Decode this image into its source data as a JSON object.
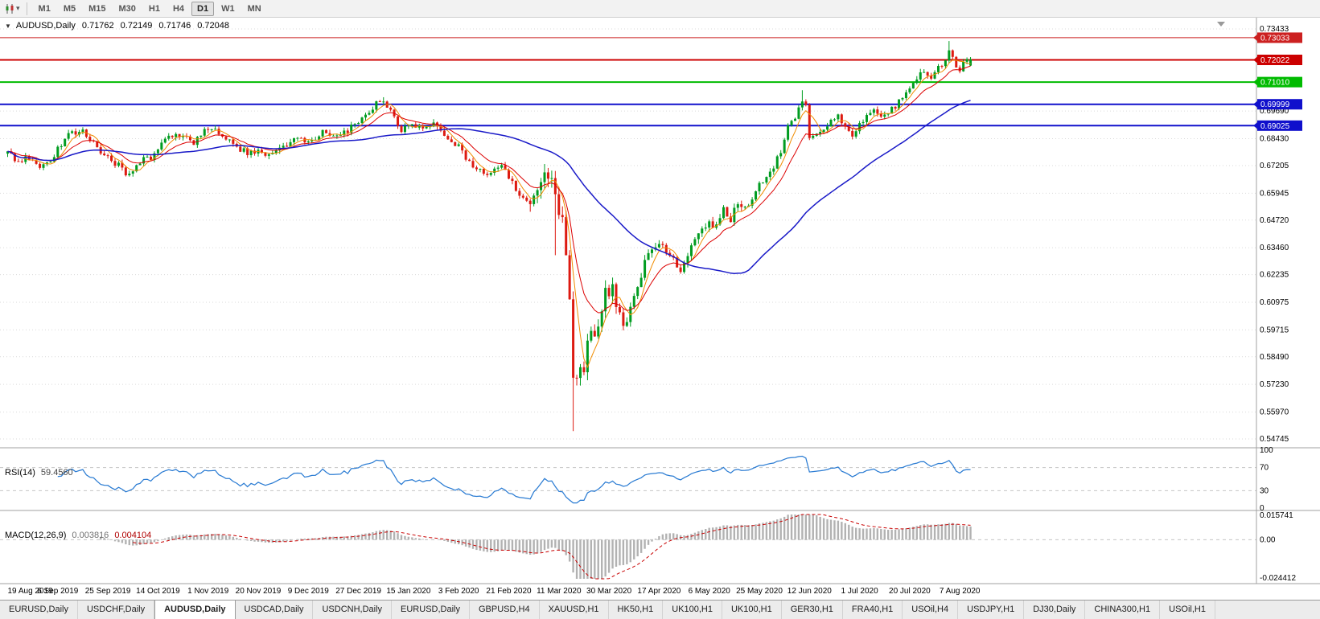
{
  "toolbar": {
    "timeframes": [
      "M1",
      "M5",
      "M15",
      "M30",
      "H1",
      "H4",
      "D1",
      "W1",
      "MN"
    ],
    "active": "D1"
  },
  "chart": {
    "title": {
      "symbol": "AUDUSD,Daily",
      "open": "0.71762",
      "high": "0.72149",
      "low": "0.71746",
      "close": "0.72048"
    },
    "price_axis": {
      "grid_labels": [
        "0.73433",
        "0.69690",
        "0.68430",
        "0.67205",
        "0.65945",
        "0.64720",
        "0.63460",
        "0.62235",
        "0.60975",
        "0.59715",
        "0.58490",
        "0.57230",
        "0.55970",
        "0.54745"
      ]
    },
    "levels": [
      {
        "value": 0.73033,
        "label": "0.73033",
        "color": "#CC2020",
        "width": 1
      },
      {
        "value": 0.72022,
        "label": "0.72022",
        "color": "#CC0000",
        "width": 2
      },
      {
        "value": 0.7101,
        "label": "0.71010",
        "color": "#00BB00",
        "width": 2
      },
      {
        "value": 0.69999,
        "label": "0.69999",
        "color": "#1010CC",
        "width": 2
      },
      {
        "value": 0.69025,
        "label": "0.69025",
        "color": "#1010CC",
        "width": 2
      }
    ]
  },
  "indicator_rsi": {
    "name_label": "RSI(14)",
    "value": "59.4560",
    "axis_labels": [
      "100",
      "70",
      "30",
      "0"
    ],
    "level_lines": [
      70,
      30
    ]
  },
  "indicator_macd": {
    "name_label": "MACD(12,26,9)",
    "value_main": "0.003816",
    "value_signal": "0.004104",
    "axis_top": "0.015741",
    "axis_zero": "0.00",
    "axis_bottom": "-0.024412"
  },
  "date_axis": {
    "bars_per_label": 14,
    "labels": [
      "19 Aug 2019",
      "6 Sep 2019",
      "25 Sep 2019",
      "14 Oct 2019",
      "1 Nov 2019",
      "20 Nov 2019",
      "9 Dec 2019",
      "27 Dec 2019",
      "15 Jan 2020",
      "3 Feb 2020",
      "21 Feb 2020",
      "11 Mar 2020",
      "30 Mar 2020",
      "17 Apr 2020",
      "6 May 2020",
      "25 May 2020",
      "12 Jun 2020",
      "1 Jul 2020",
      "20 Jul 2020",
      "7 Aug 2020"
    ]
  },
  "tabbar": {
    "active_index": 2,
    "tabs": [
      "EURUSD,Daily",
      "USDCHF,Daily",
      "AUDUSD,Daily",
      "USDCAD,Daily",
      "USDCNH,Daily",
      "EURUSD,Daily",
      "GBPUSD,H4",
      "XAUUSD,H1",
      "HK50,H1",
      "UK100,H1",
      "UK100,H1",
      "GER30,H1",
      "FRA40,H1",
      "USOil,H4",
      "USDJPY,H1",
      "DJ30,Daily",
      "CHINA300,H1",
      "USOil,H1"
    ]
  },
  "chart_data": {
    "type": "candlestick+indicators",
    "symbol": "AUDUSD",
    "timeframe": "Daily",
    "bars": 270,
    "price_range": [
      0.54745,
      0.73433
    ],
    "last_candle": {
      "o": 0.71762,
      "h": 0.72149,
      "l": 0.71746,
      "c": 0.72048
    },
    "close_anchors": [
      [
        0,
        0.6775
      ],
      [
        2,
        0.6752
      ],
      [
        4,
        0.6742
      ],
      [
        6,
        0.6762
      ],
      [
        8,
        0.6718
      ],
      [
        10,
        0.6712
      ],
      [
        12,
        0.6745
      ],
      [
        14,
        0.68
      ],
      [
        16,
        0.6845
      ],
      [
        18,
        0.6868
      ],
      [
        20,
        0.688
      ],
      [
        22,
        0.6858
      ],
      [
        24,
        0.6825
      ],
      [
        26,
        0.6788
      ],
      [
        28,
        0.676
      ],
      [
        30,
        0.6735
      ],
      [
        32,
        0.6705
      ],
      [
        34,
        0.6672
      ],
      [
        36,
        0.671
      ],
      [
        38,
        0.6745
      ],
      [
        40,
        0.6762
      ],
      [
        42,
        0.679
      ],
      [
        44,
        0.6832
      ],
      [
        46,
        0.6858
      ],
      [
        48,
        0.6865
      ],
      [
        50,
        0.6838
      ],
      [
        52,
        0.6815
      ],
      [
        54,
        0.6858
      ],
      [
        56,
        0.6898
      ],
      [
        58,
        0.6888
      ],
      [
        60,
        0.6862
      ],
      [
        62,
        0.6838
      ],
      [
        64,
        0.6805
      ],
      [
        66,
        0.6785
      ],
      [
        68,
        0.6782
      ],
      [
        70,
        0.6792
      ],
      [
        72,
        0.6778
      ],
      [
        74,
        0.6768
      ],
      [
        76,
        0.6788
      ],
      [
        78,
        0.6812
      ],
      [
        80,
        0.6838
      ],
      [
        82,
        0.6832
      ],
      [
        84,
        0.6825
      ],
      [
        86,
        0.685
      ],
      [
        88,
        0.6875
      ],
      [
        90,
        0.6858
      ],
      [
        92,
        0.6848
      ],
      [
        94,
        0.6872
      ],
      [
        96,
        0.6895
      ],
      [
        98,
        0.6928
      ],
      [
        100,
        0.6955
      ],
      [
        102,
        0.6985
      ],
      [
        104,
        0.7015
      ],
      [
        105,
        0.7022
      ],
      [
        106,
        0.6995
      ],
      [
        108,
        0.6935
      ],
      [
        110,
        0.6888
      ],
      [
        112,
        0.6902
      ],
      [
        114,
        0.6885
      ],
      [
        116,
        0.6905
      ],
      [
        118,
        0.6915
      ],
      [
        120,
        0.6888
      ],
      [
        122,
        0.6862
      ],
      [
        124,
        0.6842
      ],
      [
        126,
        0.6808
      ],
      [
        128,
        0.6752
      ],
      [
        130,
        0.6722
      ],
      [
        132,
        0.6702
      ],
      [
        134,
        0.6688
      ],
      [
        136,
        0.6712
      ],
      [
        138,
        0.6725
      ],
      [
        140,
        0.6662
      ],
      [
        142,
        0.6618
      ],
      [
        144,
        0.6578
      ],
      [
        146,
        0.6545
      ],
      [
        148,
        0.6602
      ],
      [
        150,
        0.6648
      ],
      [
        152,
        0.6622
      ],
      [
        153,
        0.6582
      ],
      [
        154,
        0.6508
      ],
      [
        155,
        0.6452
      ],
      [
        156,
        0.6345
      ],
      [
        157,
        0.6152
      ],
      [
        158,
        0.5772
      ],
      [
        159,
        0.5745
      ],
      [
        160,
        0.5808
      ],
      [
        161,
        0.5782
      ],
      [
        162,
        0.5902
      ],
      [
        163,
        0.5962
      ],
      [
        164,
        0.5938
      ],
      [
        165,
        0.5998
      ],
      [
        166,
        0.6095
      ],
      [
        167,
        0.6148
      ],
      [
        168,
        0.6128
      ],
      [
        169,
        0.6165
      ],
      [
        170,
        0.6092
      ],
      [
        171,
        0.6042
      ],
      [
        172,
        0.5988
      ],
      [
        173,
        0.6022
      ],
      [
        174,
        0.6078
      ],
      [
        175,
        0.6105
      ],
      [
        176,
        0.6162
      ],
      [
        177,
        0.6222
      ],
      [
        178,
        0.6282
      ],
      [
        179,
        0.6318
      ],
      [
        180,
        0.6345
      ],
      [
        182,
        0.6362
      ],
      [
        184,
        0.6328
      ],
      [
        186,
        0.6288
      ],
      [
        188,
        0.6252
      ],
      [
        190,
        0.6308
      ],
      [
        192,
        0.6365
      ],
      [
        194,
        0.6438
      ],
      [
        196,
        0.6478
      ],
      [
        198,
        0.6432
      ],
      [
        200,
        0.6512
      ],
      [
        202,
        0.6468
      ],
      [
        204,
        0.6545
      ],
      [
        206,
        0.6518
      ],
      [
        208,
        0.6562
      ],
      [
        210,
        0.6638
      ],
      [
        212,
        0.6658
      ],
      [
        214,
        0.6712
      ],
      [
        216,
        0.6788
      ],
      [
        218,
        0.6892
      ],
      [
        220,
        0.6948
      ],
      [
        222,
        0.7002
      ],
      [
        223,
        0.6985
      ],
      [
        224,
        0.6862
      ],
      [
        226,
        0.6852
      ],
      [
        228,
        0.6888
      ],
      [
        230,
        0.6928
      ],
      [
        232,
        0.6942
      ],
      [
        234,
        0.6905
      ],
      [
        236,
        0.6862
      ],
      [
        238,
        0.6912
      ],
      [
        240,
        0.6948
      ],
      [
        242,
        0.6968
      ],
      [
        244,
        0.6942
      ],
      [
        246,
        0.6972
      ],
      [
        248,
        0.6992
      ],
      [
        250,
        0.7022
      ],
      [
        252,
        0.7058
      ],
      [
        254,
        0.7128
      ],
      [
        256,
        0.7148
      ],
      [
        258,
        0.7118
      ],
      [
        260,
        0.7162
      ],
      [
        262,
        0.7212
      ],
      [
        263,
        0.7252
      ],
      [
        264,
        0.7202
      ],
      [
        265,
        0.7172
      ],
      [
        266,
        0.7152
      ],
      [
        267,
        0.7185
      ],
      [
        268,
        0.7192
      ],
      [
        269,
        0.72048
      ]
    ],
    "wick_overrides": [
      {
        "day": 35,
        "low": 0.667
      },
      {
        "day": 105,
        "high": 0.7032
      },
      {
        "day": 146,
        "low": 0.651
      },
      {
        "day": 153,
        "low": 0.6312
      },
      {
        "day": 158,
        "low": 0.551
      },
      {
        "day": 222,
        "high": 0.7064
      },
      {
        "day": 263,
        "high": 0.7288
      }
    ],
    "moving_averages": [
      {
        "name": "fast",
        "type": "sma",
        "period": 5
      },
      {
        "name": "mid",
        "type": "ema",
        "period": 12
      },
      {
        "name": "slow",
        "type": "sma",
        "period": 50
      }
    ],
    "rsi_period": 14,
    "rsi_current": 59.456,
    "macd": {
      "fast": 12,
      "slow": 26,
      "signal": 9,
      "current_main": 0.003816,
      "current_signal": 0.004104,
      "display_range": [
        -0.024412,
        0.015741
      ]
    },
    "colors": {
      "up": "#009C20",
      "down": "#DD1A11",
      "ma_fast": "#F08C00",
      "ma_mid": "#DC0000",
      "ma_slow": "#1A1AC8",
      "rsi": "#2B7CD3",
      "macd_hist": "#B2B2B2",
      "macd_signal": "#C80000",
      "grid": "#DADADA",
      "separator": "#A0A0A0",
      "axis_text": "#000000"
    }
  }
}
